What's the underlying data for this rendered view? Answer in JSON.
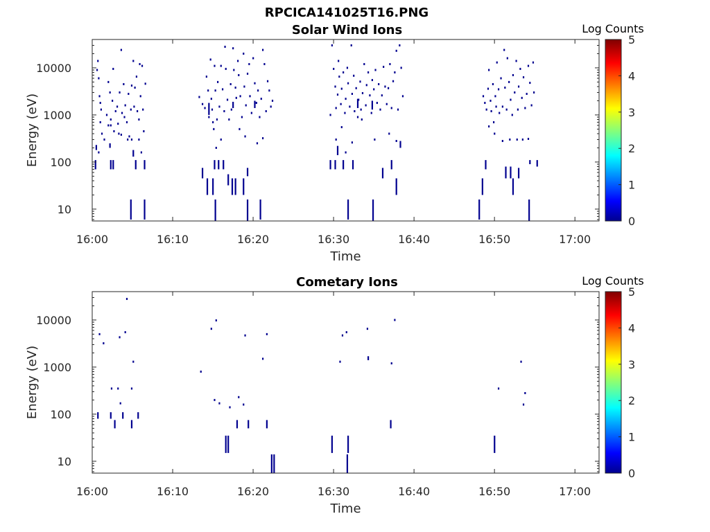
{
  "figure_title": "RPCICA141025T16.PNG",
  "chart_data": [
    {
      "type": "heatmap",
      "title": "Solar Wind Ions",
      "xlabel": "Time",
      "ylabel": "Energy (eV)",
      "x_ticks": [
        "16:00",
        "16:10",
        "16:20",
        "16:30",
        "16:40",
        "16:50",
        "17:00"
      ],
      "y_ticks": [
        "10",
        "100",
        "1000",
        "10000"
      ],
      "y_scale": "log",
      "xlim": [
        "16:00",
        "17:03"
      ],
      "ylim": [
        5.6,
        40000
      ],
      "colorbar": {
        "label": "Log Counts",
        "ticks": [
          "0",
          "1",
          "2",
          "3",
          "4",
          "5"
        ],
        "range": [
          0,
          5
        ]
      },
      "points": [
        [
          0.6,
          9000
        ],
        [
          0.7,
          14000
        ],
        [
          0.8,
          6000
        ],
        [
          0.9,
          2500
        ],
        [
          1.0,
          1800
        ],
        [
          1.1,
          1300
        ],
        [
          1.0,
          700
        ],
        [
          1.2,
          400
        ],
        [
          1.5,
          300
        ],
        [
          1.8,
          1000
        ],
        [
          2.0,
          5000
        ],
        [
          2.2,
          3000
        ],
        [
          2.3,
          800
        ],
        [
          2.5,
          2000
        ],
        [
          2.6,
          9500
        ],
        [
          2.7,
          450
        ],
        [
          2.9,
          1200
        ],
        [
          3.1,
          1500
        ],
        [
          3.2,
          650
        ],
        [
          3.4,
          3000
        ],
        [
          3.6,
          24000
        ],
        [
          3.7,
          1100
        ],
        [
          3.9,
          4500
        ],
        [
          4.0,
          900
        ],
        [
          4.1,
          1600
        ],
        [
          4.3,
          700
        ],
        [
          4.5,
          2800
        ],
        [
          4.6,
          350
        ],
        [
          4.8,
          1300
        ],
        [
          4.9,
          4200
        ],
        [
          5.1,
          14000
        ],
        [
          5.2,
          1500
        ],
        [
          5.3,
          3800
        ],
        [
          5.5,
          6500
        ],
        [
          5.6,
          1200
        ],
        [
          5.8,
          800
        ],
        [
          5.9,
          12000
        ],
        [
          6.0,
          2500
        ],
        [
          6.2,
          11000
        ],
        [
          6.3,
          1300
        ],
        [
          6.4,
          450
        ],
        [
          6.6,
          4600
        ],
        [
          6.1,
          160
        ],
        [
          5.8,
          300
        ],
        [
          4.9,
          300
        ],
        [
          4.4,
          300
        ],
        [
          3.6,
          380
        ],
        [
          3.3,
          400
        ],
        [
          2.0,
          600
        ],
        [
          2.3,
          600
        ],
        [
          0.8,
          160
        ],
        [
          13.3,
          2400
        ],
        [
          13.7,
          1700
        ],
        [
          14.0,
          1400
        ],
        [
          14.2,
          6500
        ],
        [
          14.4,
          3300
        ],
        [
          14.5,
          900
        ],
        [
          14.7,
          15000
        ],
        [
          14.8,
          2200
        ],
        [
          14.9,
          1300
        ],
        [
          15.0,
          700
        ],
        [
          15.2,
          11000
        ],
        [
          15.3,
          3300
        ],
        [
          15.5,
          800
        ],
        [
          15.6,
          5000
        ],
        [
          15.8,
          1500
        ],
        [
          16.0,
          11000
        ],
        [
          16.2,
          3500
        ],
        [
          16.4,
          1200
        ],
        [
          16.5,
          28000
        ],
        [
          16.6,
          9500
        ],
        [
          16.8,
          2100
        ],
        [
          17.0,
          800
        ],
        [
          17.2,
          4500
        ],
        [
          17.3,
          1300
        ],
        [
          17.5,
          26000
        ],
        [
          17.6,
          9000
        ],
        [
          17.8,
          3800
        ],
        [
          17.9,
          2300
        ],
        [
          18.1,
          14000
        ],
        [
          18.2,
          7000
        ],
        [
          18.4,
          2500
        ],
        [
          18.6,
          900
        ],
        [
          18.8,
          20000
        ],
        [
          18.9,
          4000
        ],
        [
          19.1,
          1600
        ],
        [
          19.3,
          7500
        ],
        [
          19.5,
          12000
        ],
        [
          19.6,
          2500
        ],
        [
          19.8,
          1100
        ],
        [
          20.0,
          16000
        ],
        [
          20.2,
          4700
        ],
        [
          20.4,
          1800
        ],
        [
          20.6,
          3300
        ],
        [
          20.8,
          900
        ],
        [
          21.0,
          2200
        ],
        [
          21.2,
          24000
        ],
        [
          21.4,
          12000
        ],
        [
          21.6,
          1200
        ],
        [
          21.8,
          5200
        ],
        [
          22.0,
          3300
        ],
        [
          22.2,
          1500
        ],
        [
          22.4,
          2000
        ],
        [
          15.1,
          500
        ],
        [
          15.4,
          200
        ],
        [
          16.0,
          300
        ],
        [
          18.3,
          500
        ],
        [
          19.0,
          350
        ],
        [
          20.5,
          250
        ],
        [
          21.2,
          320
        ],
        [
          29.8,
          30000
        ],
        [
          30.0,
          9500
        ],
        [
          30.2,
          4000
        ],
        [
          30.3,
          1400
        ],
        [
          30.5,
          2700
        ],
        [
          30.6,
          14000
        ],
        [
          30.7,
          6500
        ],
        [
          30.9,
          1700
        ],
        [
          31.0,
          3600
        ],
        [
          31.2,
          8000
        ],
        [
          31.4,
          1100
        ],
        [
          31.5,
          2200
        ],
        [
          31.7,
          10000
        ],
        [
          31.8,
          4700
        ],
        [
          32.0,
          1500
        ],
        [
          32.2,
          30000
        ],
        [
          32.3,
          2800
        ],
        [
          32.5,
          6800
        ],
        [
          32.6,
          1200
        ],
        [
          32.8,
          3700
        ],
        [
          33.0,
          900
        ],
        [
          33.1,
          2100
        ],
        [
          33.3,
          5100
        ],
        [
          33.4,
          1300
        ],
        [
          33.6,
          2900
        ],
        [
          33.8,
          12000
        ],
        [
          34.0,
          1600
        ],
        [
          34.1,
          4300
        ],
        [
          34.3,
          8000
        ],
        [
          34.5,
          2600
        ],
        [
          34.7,
          1100
        ],
        [
          34.8,
          5500
        ],
        [
          35.0,
          3500
        ],
        [
          35.2,
          9000
        ],
        [
          35.4,
          1800
        ],
        [
          35.6,
          4500
        ],
        [
          35.8,
          1300
        ],
        [
          36.0,
          2600
        ],
        [
          36.2,
          10500
        ],
        [
          36.4,
          4000
        ],
        [
          36.6,
          1700
        ],
        [
          36.8,
          3700
        ],
        [
          37.0,
          12000
        ],
        [
          37.2,
          1400
        ],
        [
          37.4,
          5200
        ],
        [
          37.6,
          8000
        ],
        [
          37.8,
          23000
        ],
        [
          38.0,
          1300
        ],
        [
          38.2,
          30000
        ],
        [
          38.4,
          10000
        ],
        [
          38.6,
          2500
        ],
        [
          29.6,
          1000
        ],
        [
          30.3,
          300
        ],
        [
          31.0,
          550
        ],
        [
          31.5,
          160
        ],
        [
          32.3,
          260
        ],
        [
          33.5,
          800
        ],
        [
          35.1,
          300
        ],
        [
          36.9,
          400
        ],
        [
          37.8,
          280
        ],
        [
          48.6,
          2500
        ],
        [
          48.8,
          1800
        ],
        [
          49.0,
          1300
        ],
        [
          49.2,
          3600
        ],
        [
          49.3,
          9000
        ],
        [
          49.5,
          2000
        ],
        [
          49.6,
          1200
        ],
        [
          49.8,
          4500
        ],
        [
          49.9,
          700
        ],
        [
          50.1,
          2500
        ],
        [
          50.2,
          1500
        ],
        [
          50.3,
          13000
        ],
        [
          50.5,
          3500
        ],
        [
          50.6,
          1100
        ],
        [
          50.8,
          6000
        ],
        [
          51.0,
          1500
        ],
        [
          51.2,
          24000
        ],
        [
          51.3,
          3800
        ],
        [
          51.5,
          1300
        ],
        [
          51.6,
          16000
        ],
        [
          51.8,
          5000
        ],
        [
          52.0,
          2100
        ],
        [
          52.2,
          1000
        ],
        [
          52.3,
          7000
        ],
        [
          52.5,
          3000
        ],
        [
          52.7,
          14000
        ],
        [
          52.9,
          1300
        ],
        [
          53.0,
          4000
        ],
        [
          53.2,
          9500
        ],
        [
          53.4,
          2300
        ],
        [
          53.6,
          6300
        ],
        [
          53.8,
          1400
        ],
        [
          54.0,
          2800
        ],
        [
          54.2,
          11000
        ],
        [
          54.4,
          4800
        ],
        [
          54.6,
          1600
        ],
        [
          54.8,
          13000
        ],
        [
          54.9,
          3000
        ],
        [
          50.0,
          400
        ],
        [
          51.0,
          280
        ],
        [
          51.9,
          300
        ],
        [
          52.8,
          300
        ],
        [
          53.5,
          300
        ],
        [
          54.2,
          310
        ],
        [
          49.3,
          570
        ]
      ],
      "bars": [
        [
          0.4,
          70,
          110
        ],
        [
          2.3,
          70,
          110
        ],
        [
          2.6,
          70,
          110
        ],
        [
          5.4,
          70,
          110
        ],
        [
          6.5,
          70,
          110
        ],
        [
          5.1,
          130,
          180
        ],
        [
          2.2,
          200,
          250
        ],
        [
          0.5,
          180,
          230
        ],
        [
          13.7,
          45,
          75
        ],
        [
          14.3,
          20,
          45
        ],
        [
          15.0,
          20,
          45
        ],
        [
          15.2,
          70,
          110
        ],
        [
          15.7,
          70,
          110
        ],
        [
          16.3,
          70,
          110
        ],
        [
          16.9,
          32,
          55
        ],
        [
          17.4,
          20,
          45
        ],
        [
          17.8,
          20,
          45
        ],
        [
          18.8,
          20,
          45
        ],
        [
          19.3,
          50,
          75
        ],
        [
          29.6,
          70,
          110
        ],
        [
          30.2,
          70,
          110
        ],
        [
          30.5,
          140,
          220
        ],
        [
          31.2,
          70,
          110
        ],
        [
          32.4,
          70,
          110
        ],
        [
          33.0,
          1400,
          2200
        ],
        [
          34.8,
          1300,
          2000
        ],
        [
          36.1,
          45,
          75
        ],
        [
          37.2,
          70,
          110
        ],
        [
          37.8,
          20,
          45
        ],
        [
          38.3,
          200,
          280
        ],
        [
          48.5,
          20,
          45
        ],
        [
          48.9,
          70,
          110
        ],
        [
          51.4,
          45,
          80
        ],
        [
          52.0,
          45,
          80
        ],
        [
          52.3,
          20,
          45
        ],
        [
          53.0,
          45,
          75
        ],
        [
          54.4,
          90,
          110
        ],
        [
          55.3,
          80,
          110
        ],
        [
          14.5,
          1000,
          1800
        ],
        [
          17.5,
          1400,
          1900
        ],
        [
          20.2,
          1400,
          2000
        ],
        [
          4.8,
          6,
          16
        ],
        [
          6.5,
          6,
          16
        ],
        [
          15.3,
          5.6,
          16
        ],
        [
          19.3,
          5.6,
          16
        ],
        [
          20.9,
          6,
          16
        ],
        [
          31.8,
          6,
          16
        ],
        [
          34.9,
          5.6,
          16
        ],
        [
          48.1,
          6,
          16
        ],
        [
          54.3,
          5.6,
          16
        ]
      ]
    },
    {
      "type": "heatmap",
      "title": "Cometary Ions",
      "xlabel": "Time",
      "ylabel": "Energy (eV)",
      "x_ticks": [
        "16:00",
        "16:10",
        "16:20",
        "16:30",
        "16:40",
        "16:50",
        "17:00"
      ],
      "y_ticks": [
        "10",
        "100",
        "1000",
        "10000"
      ],
      "y_scale": "log",
      "xlim": [
        "16:00",
        "17:03"
      ],
      "ylim": [
        5.6,
        40000
      ],
      "colorbar": {
        "label": "Log Counts",
        "ticks": [
          "0",
          "1",
          "2",
          "3",
          "4",
          "5"
        ],
        "range": [
          0,
          5
        ]
      },
      "points": [
        [
          0.9,
          5000
        ],
        [
          1.4,
          3200
        ],
        [
          2.4,
          350
        ],
        [
          3.2,
          350
        ],
        [
          3.4,
          4300
        ],
        [
          4.1,
          5500
        ],
        [
          4.3,
          28000
        ],
        [
          4.9,
          350
        ],
        [
          5.1,
          1300
        ],
        [
          3.5,
          170
        ],
        [
          13.5,
          800
        ],
        [
          14.8,
          6500
        ],
        [
          15.2,
          200
        ],
        [
          15.4,
          9800
        ],
        [
          15.8,
          170
        ],
        [
          17.1,
          140
        ],
        [
          18.8,
          160
        ],
        [
          18.2,
          230
        ],
        [
          19.0,
          4700
        ],
        [
          21.2,
          1500
        ],
        [
          21.7,
          5000
        ],
        [
          30.8,
          1300
        ],
        [
          31.1,
          4700
        ],
        [
          31.6,
          5500
        ],
        [
          34.2,
          6500
        ],
        [
          37.2,
          1200
        ],
        [
          37.6,
          10000
        ],
        [
          50.5,
          350
        ],
        [
          53.3,
          1300
        ],
        [
          53.6,
          160
        ],
        [
          53.8,
          280
        ]
      ],
      "bars": [
        [
          0.7,
          80,
          110
        ],
        [
          2.3,
          80,
          110
        ],
        [
          2.8,
          50,
          75
        ],
        [
          3.8,
          80,
          110
        ],
        [
          4.9,
          50,
          75
        ],
        [
          5.7,
          80,
          110
        ],
        [
          16.6,
          15,
          35
        ],
        [
          16.9,
          15,
          35
        ],
        [
          18.0,
          50,
          75
        ],
        [
          19.4,
          50,
          75
        ],
        [
          21.7,
          50,
          75
        ],
        [
          29.8,
          15,
          35
        ],
        [
          31.8,
          15,
          35
        ],
        [
          37.1,
          50,
          75
        ],
        [
          50.0,
          15,
          35
        ],
        [
          34.3,
          1400,
          1700
        ],
        [
          22.3,
          5.6,
          14
        ],
        [
          22.6,
          5.6,
          14
        ],
        [
          31.7,
          5.6,
          14
        ]
      ]
    }
  ]
}
